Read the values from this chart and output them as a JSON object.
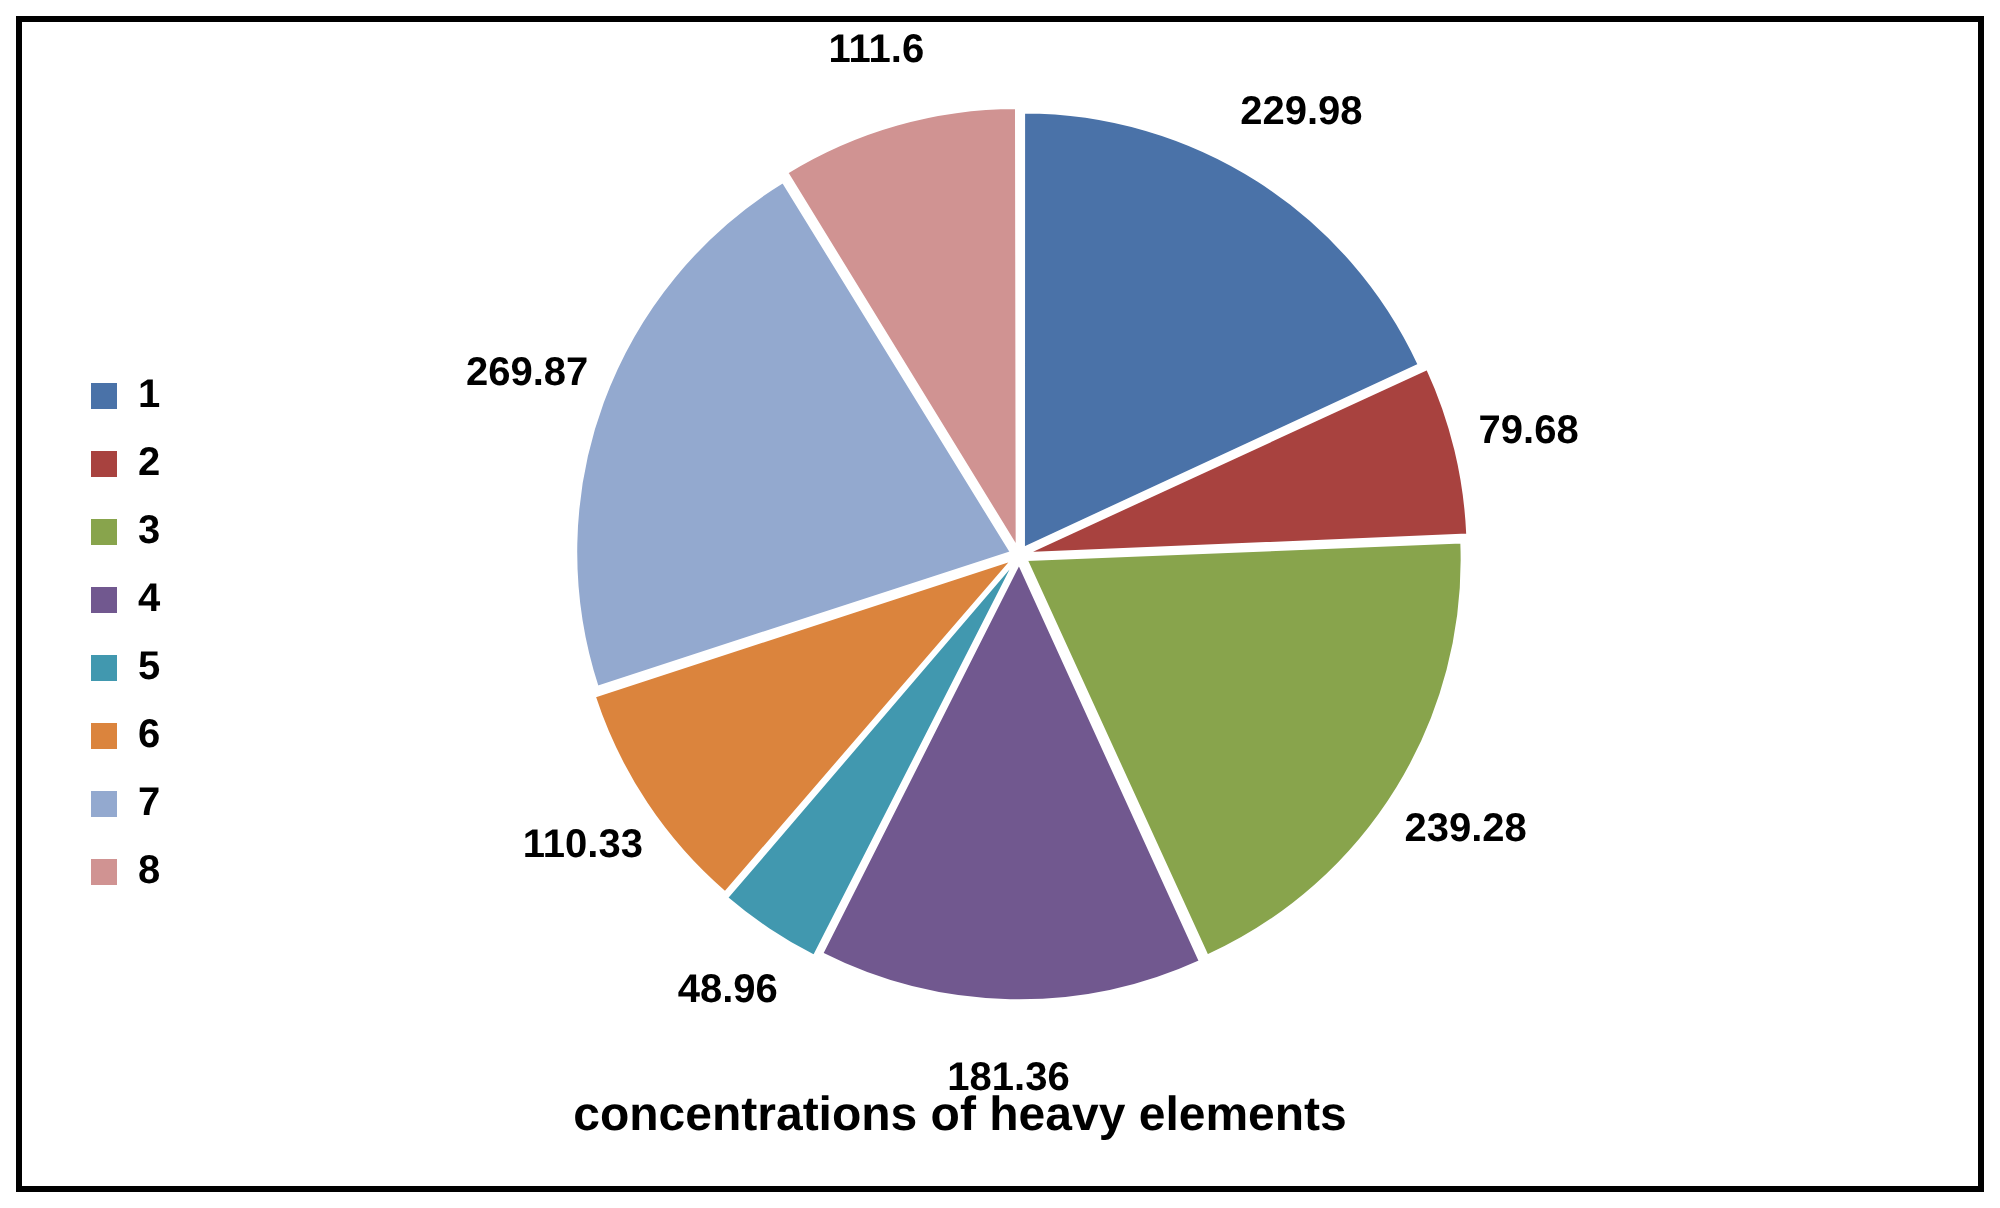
{
  "chart_data": {
    "type": "pie",
    "title": "concentrations of heavy elements",
    "categories": [
      "1",
      "2",
      "3",
      "4",
      "5",
      "6",
      "7",
      "8"
    ],
    "values": [
      229.98,
      79.68,
      239.28,
      181.36,
      48.96,
      110.33,
      269.87,
      111.6
    ],
    "colors": [
      "#4a72a8",
      "#a8423f",
      "#88a44c",
      "#71588f",
      "#4198af",
      "#db843d",
      "#93a9cf",
      "#d09392"
    ],
    "data_labels": true,
    "legend": "left"
  }
}
